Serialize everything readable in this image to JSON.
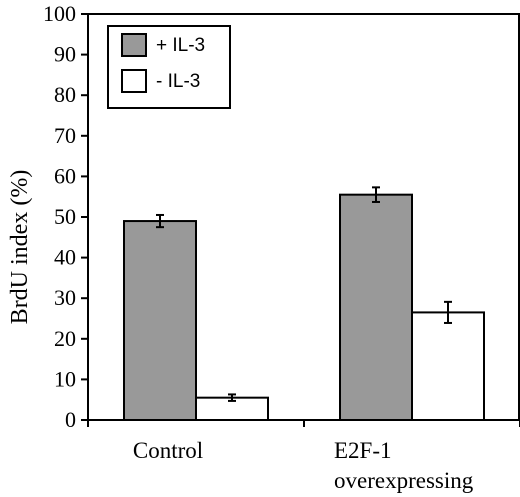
{
  "chart_data": {
    "type": "bar",
    "ylabel": "BrdU index (%)",
    "xlabel": "",
    "ylim": [
      0,
      100
    ],
    "yticks": [
      0,
      10,
      20,
      30,
      40,
      50,
      60,
      70,
      80,
      90,
      100
    ],
    "categories": [
      [
        "Control"
      ],
      [
        "E2F-1",
        "overexpressing"
      ]
    ],
    "series": [
      {
        "name": "+ IL-3",
        "values": [
          49,
          55.5
        ],
        "errors": [
          1.5,
          1.8
        ],
        "color": "#999999"
      },
      {
        "name": "- IL-3",
        "values": [
          5.5,
          26.5
        ],
        "errors": [
          0.8,
          2.6
        ],
        "color": "#ffffff"
      }
    ],
    "legend": "top-left",
    "grid": false
  }
}
